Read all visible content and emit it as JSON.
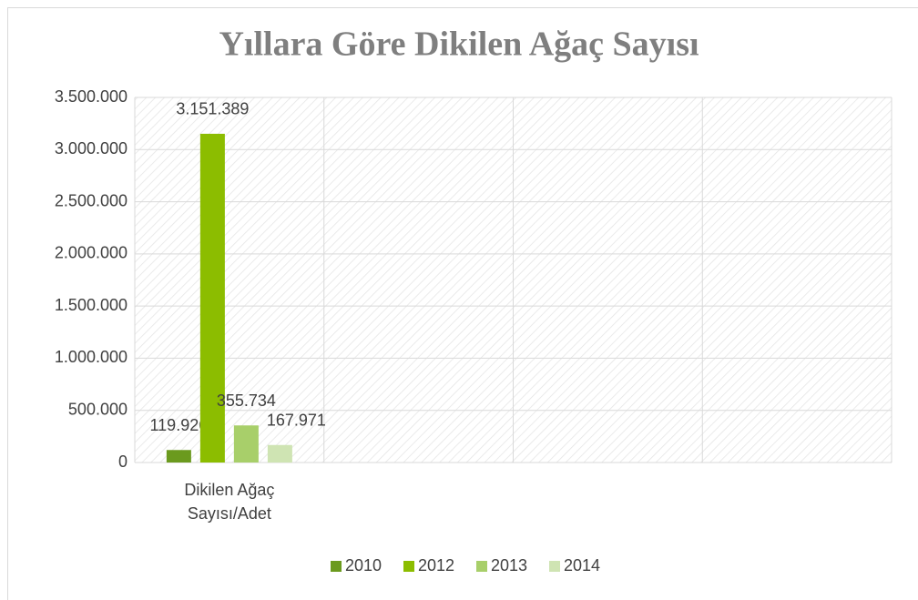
{
  "chart_data": {
    "type": "bar",
    "title": "Yıllara Göre Dikilen Ağaç Sayısı",
    "categories": [
      "Dikilen Ağaç Sayısı/Adet",
      null,
      null,
      null
    ],
    "series": [
      {
        "name": "2010",
        "color": "#6b9a1e",
        "values": [
          119926,
          null,
          null,
          null
        ],
        "value_labels": [
          "119.926",
          null,
          null,
          null
        ]
      },
      {
        "name": "2012",
        "color": "#8cbd00",
        "values": [
          3151389,
          null,
          null,
          null
        ],
        "value_labels": [
          "3.151.389",
          null,
          null,
          null
        ]
      },
      {
        "name": "2013",
        "color": "#a8cf6a",
        "values": [
          355734,
          null,
          null,
          null
        ],
        "value_labels": [
          "355.734",
          null,
          null,
          null
        ]
      },
      {
        "name": "2014",
        "color": "#cfe4b3",
        "values": [
          167971,
          null,
          null,
          null
        ],
        "value_labels": [
          "167.971",
          null,
          null,
          null
        ]
      }
    ],
    "ylim": [
      0,
      3500000
    ],
    "yticks": [
      0,
      {
        "value": 500000,
        "label": "500.000"
      },
      {
        "value": 1000000,
        "label": "1.000.000"
      },
      {
        "value": 1500000,
        "label": "1.500.000"
      },
      {
        "value": 2000000,
        "label": "2.000.000"
      },
      {
        "value": 2500000,
        "label": "2.500.000"
      },
      {
        "value": 3000000,
        "label": "3.000.000"
      },
      {
        "value": 3500000,
        "label": "3.500.000"
      }
    ],
    "grid": true,
    "legend": "bottom"
  }
}
